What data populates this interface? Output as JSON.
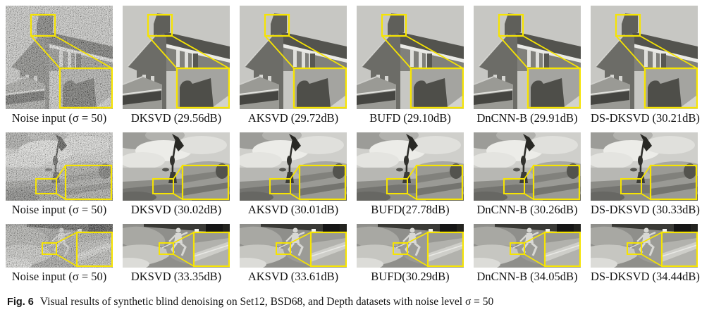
{
  "figure": {
    "caption_label": "Fig. 6",
    "caption_text": "Visual results of synthetic blind denoising on Set12, BSD68, and Depth datasets with noise level σ = 50"
  },
  "colors": {
    "highlight_yellow": "#f6e402",
    "page_background": "#ffffff",
    "text": "#141414"
  },
  "rows": [
    {
      "scene": "house",
      "panels": [
        {
          "label": "Noise input (σ = 50)",
          "noisy": true
        },
        {
          "label": "DKSVD (29.56dB)",
          "noisy": false
        },
        {
          "label": "AKSVD (29.72dB)",
          "noisy": false
        },
        {
          "label": "BUFD (29.10dB)",
          "noisy": false
        },
        {
          "label": "DnCNN-B (29.91dB)",
          "noisy": false
        },
        {
          "label": "DS-DKSVD (30.21dB)",
          "noisy": false
        }
      ]
    },
    {
      "scene": "bird",
      "panels": [
        {
          "label": "Noise input (σ = 50)",
          "noisy": true
        },
        {
          "label": "DKSVD (30.02dB)",
          "noisy": false
        },
        {
          "label": "AKSVD (30.01dB)",
          "noisy": false
        },
        {
          "label": "BUFD(27.78dB)",
          "noisy": false
        },
        {
          "label": "DnCNN-B (30.26dB)",
          "noisy": false
        },
        {
          "label": "DS-DKSVD (30.33dB)",
          "noisy": false
        }
      ]
    },
    {
      "scene": "depth",
      "panels": [
        {
          "label": "Noise input (σ = 50)",
          "noisy": true
        },
        {
          "label": "DKSVD (33.35dB)",
          "noisy": false
        },
        {
          "label": "AKSVD (33.61dB)",
          "noisy": false
        },
        {
          "label": "BUFD(30.29dB)",
          "noisy": false
        },
        {
          "label": "DnCNN-B (34.05dB)",
          "noisy": false
        },
        {
          "label": "DS-DKSVD (34.44dB)",
          "noisy": false
        }
      ]
    }
  ]
}
